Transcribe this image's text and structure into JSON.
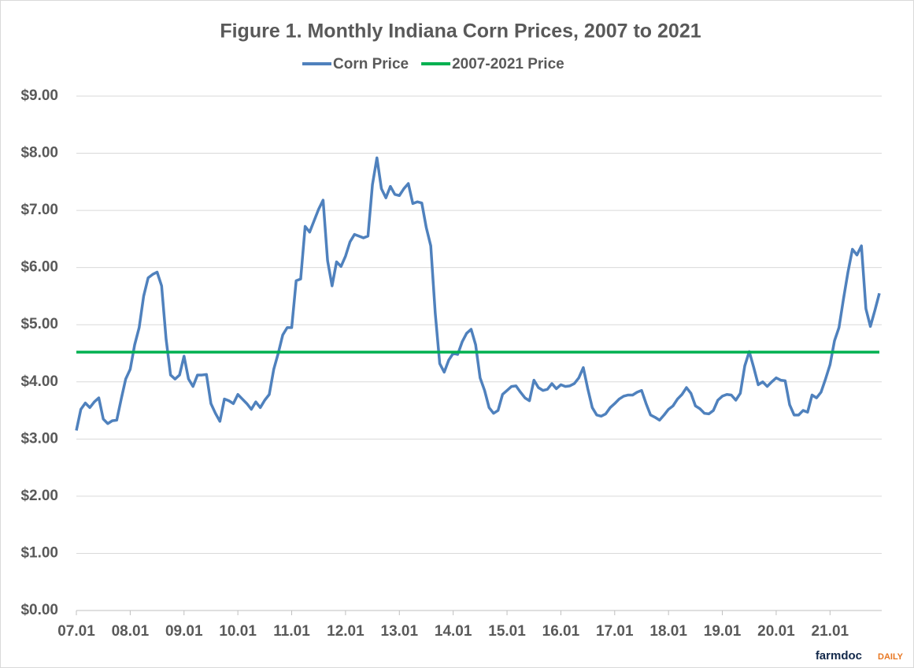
{
  "chart_data": {
    "type": "line",
    "title": "Figure 1.  Monthly Indiana Corn Prices, 2007 to 2021",
    "source": [
      "farmdoc",
      "DAILY"
    ],
    "legend": "top",
    "grid": true,
    "categories": [
      "07.01",
      null,
      null,
      null,
      null,
      null,
      null,
      null,
      null,
      null,
      null,
      null,
      "08.01",
      null,
      null,
      null,
      null,
      null,
      null,
      null,
      null,
      null,
      null,
      null,
      "09.01",
      null,
      null,
      null,
      null,
      null,
      null,
      null,
      null,
      null,
      null,
      null,
      "10.01",
      null,
      null,
      null,
      null,
      null,
      null,
      null,
      null,
      null,
      null,
      null,
      "11.01",
      null,
      null,
      null,
      null,
      null,
      null,
      null,
      null,
      null,
      null,
      null,
      "12.01",
      null,
      null,
      null,
      null,
      null,
      null,
      null,
      null,
      null,
      null,
      null,
      "13.01",
      null,
      null,
      null,
      null,
      null,
      null,
      null,
      null,
      null,
      null,
      null,
      "14.01",
      null,
      null,
      null,
      null,
      null,
      null,
      null,
      null,
      null,
      null,
      null,
      "15.01",
      null,
      null,
      null,
      null,
      null,
      null,
      null,
      null,
      null,
      null,
      null,
      "16.01",
      null,
      null,
      null,
      null,
      null,
      null,
      null,
      null,
      null,
      null,
      null,
      "17.01",
      null,
      null,
      null,
      null,
      null,
      null,
      null,
      null,
      null,
      null,
      null,
      "18.01",
      null,
      null,
      null,
      null,
      null,
      null,
      null,
      null,
      null,
      null,
      null,
      "19.01",
      null,
      null,
      null,
      null,
      null,
      null,
      null,
      null,
      null,
      null,
      null,
      "20.01",
      null,
      null,
      null,
      null,
      null,
      null,
      null,
      null,
      null,
      null,
      null,
      "21.01",
      null,
      null,
      null,
      null,
      null,
      null,
      null,
      null,
      null,
      null,
      null
    ],
    "series": [
      {
        "name": "Corn Price",
        "color": "#4f81bd",
        "values": [
          3.15,
          3.52,
          3.63,
          3.55,
          3.65,
          3.72,
          3.35,
          3.27,
          3.32,
          3.33,
          3.7,
          4.05,
          4.22,
          4.65,
          4.95,
          5.5,
          5.82,
          5.88,
          5.92,
          5.68,
          4.75,
          4.12,
          4.05,
          4.12,
          4.45,
          4.05,
          3.92,
          4.12,
          4.12,
          4.13,
          3.62,
          3.45,
          3.31,
          3.7,
          3.67,
          3.62,
          3.78,
          3.7,
          3.62,
          3.52,
          3.65,
          3.55,
          3.68,
          3.78,
          4.22,
          4.5,
          4.82,
          4.95,
          4.95,
          5.77,
          5.8,
          6.72,
          6.62,
          6.82,
          7.02,
          7.18,
          6.12,
          5.68,
          6.1,
          6.02,
          6.2,
          6.45,
          6.58,
          6.55,
          6.52,
          6.55,
          7.45,
          7.92,
          7.38,
          7.22,
          7.42,
          7.28,
          7.26,
          7.38,
          7.47,
          7.12,
          7.15,
          7.13,
          6.7,
          6.38,
          5.2,
          4.32,
          4.17,
          4.38,
          4.5,
          4.48,
          4.7,
          4.85,
          4.92,
          4.65,
          4.07,
          3.85,
          3.55,
          3.45,
          3.5,
          3.78,
          3.85,
          3.92,
          3.93,
          3.82,
          3.72,
          3.67,
          4.03,
          3.9,
          3.85,
          3.87,
          3.97,
          3.88,
          3.95,
          3.92,
          3.93,
          3.97,
          4.07,
          4.25,
          3.88,
          3.55,
          3.42,
          3.4,
          3.44,
          3.55,
          3.62,
          3.7,
          3.75,
          3.77,
          3.77,
          3.82,
          3.85,
          3.62,
          3.42,
          3.38,
          3.33,
          3.42,
          3.52,
          3.58,
          3.7,
          3.78,
          3.9,
          3.8,
          3.58,
          3.53,
          3.45,
          3.44,
          3.5,
          3.68,
          3.75,
          3.78,
          3.77,
          3.68,
          3.8,
          4.28,
          4.53,
          4.25,
          3.95,
          4.0,
          3.92,
          4.0,
          4.07,
          4.03,
          4.02,
          3.6,
          3.42,
          3.42,
          3.5,
          3.47,
          3.77,
          3.72,
          3.82,
          4.05,
          4.3,
          4.72,
          4.95,
          5.45,
          5.92,
          6.32,
          6.22,
          6.38,
          5.28,
          4.97,
          5.25,
          5.55
        ]
      },
      {
        "name": "2007-2021 Price",
        "color": "#00b050",
        "values": [
          4.52,
          4.52,
          4.52,
          4.52,
          4.52,
          4.52,
          4.52,
          4.52,
          4.52,
          4.52,
          4.52,
          4.52,
          4.52,
          4.52,
          4.52,
          4.52,
          4.52,
          4.52,
          4.52,
          4.52,
          4.52,
          4.52,
          4.52,
          4.52,
          4.52,
          4.52,
          4.52,
          4.52,
          4.52,
          4.52,
          4.52,
          4.52,
          4.52,
          4.52,
          4.52,
          4.52,
          4.52,
          4.52,
          4.52,
          4.52,
          4.52,
          4.52,
          4.52,
          4.52,
          4.52,
          4.52,
          4.52,
          4.52,
          4.52,
          4.52,
          4.52,
          4.52,
          4.52,
          4.52,
          4.52,
          4.52,
          4.52,
          4.52,
          4.52,
          4.52,
          4.52,
          4.52,
          4.52,
          4.52,
          4.52,
          4.52,
          4.52,
          4.52,
          4.52,
          4.52,
          4.52,
          4.52,
          4.52,
          4.52,
          4.52,
          4.52,
          4.52,
          4.52,
          4.52,
          4.52,
          4.52,
          4.52,
          4.52,
          4.52,
          4.52,
          4.52,
          4.52,
          4.52,
          4.52,
          4.52,
          4.52,
          4.52,
          4.52,
          4.52,
          4.52,
          4.52,
          4.52,
          4.52,
          4.52,
          4.52,
          4.52,
          4.52,
          4.52,
          4.52,
          4.52,
          4.52,
          4.52,
          4.52,
          4.52,
          4.52,
          4.52,
          4.52,
          4.52,
          4.52,
          4.52,
          4.52,
          4.52,
          4.52,
          4.52,
          4.52,
          4.52,
          4.52,
          4.52,
          4.52,
          4.52,
          4.52,
          4.52,
          4.52,
          4.52,
          4.52,
          4.52,
          4.52,
          4.52,
          4.52,
          4.52,
          4.52,
          4.52,
          4.52,
          4.52,
          4.52,
          4.52,
          4.52,
          4.52,
          4.52,
          4.52,
          4.52,
          4.52,
          4.52,
          4.52,
          4.52,
          4.52,
          4.52,
          4.52,
          4.52,
          4.52,
          4.52,
          4.52,
          4.52,
          4.52,
          4.52,
          4.52,
          4.52,
          4.52,
          4.52,
          4.52,
          4.52,
          4.52,
          4.52,
          4.52,
          4.52,
          4.52,
          4.52,
          4.52,
          4.52,
          4.52,
          4.52,
          4.52,
          4.52,
          4.52,
          4.52
        ]
      }
    ],
    "ylim": [
      0,
      9
    ],
    "yticks": [
      {
        "value": 0,
        "label": "$0.00"
      },
      {
        "value": 1,
        "label": "$1.00"
      },
      {
        "value": 2,
        "label": "$2.00"
      },
      {
        "value": 3,
        "label": "$3.00"
      },
      {
        "value": 4,
        "label": "$4.00"
      },
      {
        "value": 5,
        "label": "$5.00"
      },
      {
        "value": 6,
        "label": "$6.00"
      },
      {
        "value": 7,
        "label": "$7.00"
      },
      {
        "value": 8,
        "label": "$8.00"
      },
      {
        "value": 9,
        "label": "$9.00"
      }
    ]
  }
}
